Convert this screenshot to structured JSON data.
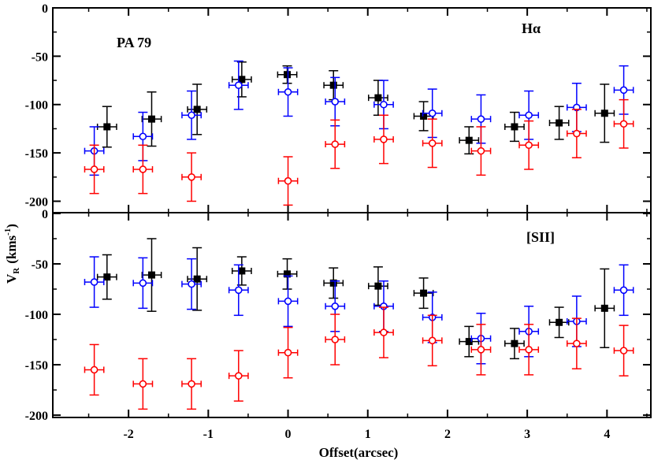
{
  "chart_data": {
    "type": "scatter",
    "title": "",
    "xlabel": "Offset(arcsec)",
    "ylabel": {
      "main": "V",
      "sub": "R",
      "unit": "(kms",
      "unit_sup": "-1",
      "unit_end": ")"
    },
    "xlim": [
      -2.95,
      4.55
    ],
    "xticks": [
      -2,
      -1,
      0,
      1,
      2,
      3,
      4
    ],
    "grid": false,
    "colors": {
      "black": "#000000",
      "blue": "#0000ff",
      "red": "#ff0000"
    },
    "panels": [
      {
        "name": "halpha",
        "annotations": [
          "PA 79",
          "Hα"
        ],
        "ylim": [
          -210,
          0
        ],
        "yticks": [
          0,
          -50,
          -100,
          -150,
          -200
        ],
        "series": [
          {
            "name": "black",
            "marker": "square-filled",
            "color": "#000000",
            "x": [
              -2.27,
              -1.71,
              -1.14,
              -0.58,
              -0.01,
              0.57,
              1.13,
              1.7,
              2.27,
              2.84,
              3.4,
              3.97
            ],
            "y": [
              -123,
              -115,
              -105,
              -74,
              -69,
              -80,
              -93,
              -112,
              -137,
              -123,
              -119,
              -109
            ],
            "xerr": [
              0.12,
              0.12,
              0.12,
              0.12,
              0.12,
              0.12,
              0.12,
              0.12,
              0.12,
              0.12,
              0.12,
              0.12
            ],
            "yerr": [
              21,
              28,
              26,
              18,
              9,
              15,
              18,
              15,
              14,
              15,
              17,
              30
            ]
          },
          {
            "name": "blue",
            "marker": "circle-open",
            "color": "#0000ff",
            "x": [
              -2.43,
              -1.82,
              -1.21,
              -0.62,
              0.0,
              0.59,
              1.2,
              1.81,
              2.42,
              3.02,
              3.62,
              4.21
            ],
            "y": [
              -148,
              -133,
              -111,
              -80,
              -87,
              -97,
              -100,
              -109,
              -115,
              -111,
              -103,
              -85
            ],
            "xerr": [
              0.12,
              0.12,
              0.12,
              0.12,
              0.12,
              0.12,
              0.12,
              0.12,
              0.12,
              0.12,
              0.12,
              0.12
            ],
            "yerr": [
              25,
              25,
              25,
              25,
              25,
              25,
              25,
              25,
              25,
              25,
              25,
              25
            ]
          },
          {
            "name": "red",
            "marker": "circle-open",
            "color": "#ff0000",
            "x": [
              -2.43,
              -1.82,
              -1.21,
              0.0,
              0.59,
              1.2,
              1.81,
              2.42,
              3.02,
              3.62,
              4.21
            ],
            "y": [
              -167,
              -167,
              -175,
              -179,
              -141,
              -136,
              -140,
              -148,
              -142,
              -130,
              -120
            ],
            "xerr": [
              0.12,
              0.12,
              0.12,
              0.12,
              0.12,
              0.12,
              0.12,
              0.12,
              0.12,
              0.12,
              0.12
            ],
            "yerr": [
              25,
              25,
              25,
              25,
              25,
              25,
              25,
              25,
              25,
              25,
              25
            ]
          }
        ]
      },
      {
        "name": "sii",
        "annotations": [
          "[SII]"
        ],
        "ylim": [
          -205,
          0
        ],
        "yticks": [
          0,
          -50,
          -100,
          -150,
          -200
        ],
        "series": [
          {
            "name": "black",
            "marker": "square-filled",
            "color": "#000000",
            "x": [
              -2.27,
              -1.71,
              -1.14,
              -0.58,
              -0.01,
              0.57,
              1.13,
              1.7,
              2.27,
              2.84,
              3.4,
              3.97
            ],
            "y": [
              -63,
              -61,
              -65,
              -57,
              -60,
              -69,
              -72,
              -79,
              -127,
              -129,
              -108,
              -94
            ],
            "xerr": [
              0.12,
              0.12,
              0.12,
              0.12,
              0.12,
              0.12,
              0.12,
              0.12,
              0.12,
              0.12,
              0.12,
              0.12
            ],
            "yerr": [
              22,
              36,
              31,
              14,
              15,
              15,
              19,
              15,
              15,
              15,
              15,
              39
            ]
          },
          {
            "name": "blue",
            "marker": "circle-open",
            "color": "#0000ff",
            "x": [
              -2.43,
              -1.82,
              -1.21,
              -0.62,
              0.0,
              0.59,
              1.2,
              1.81,
              2.42,
              3.02,
              3.62,
              4.21
            ],
            "y": [
              -68,
              -69,
              -70,
              -76,
              -87,
              -92,
              -92,
              -103,
              -124,
              -117,
              -107,
              -76
            ],
            "xerr": [
              0.12,
              0.12,
              0.12,
              0.12,
              0.12,
              0.12,
              0.12,
              0.12,
              0.12,
              0.12,
              0.12,
              0.12
            ],
            "yerr": [
              25,
              25,
              25,
              25,
              25,
              25,
              25,
              25,
              25,
              25,
              25,
              25
            ]
          },
          {
            "name": "red",
            "marker": "circle-open",
            "color": "#ff0000",
            "x": [
              -2.43,
              -1.82,
              -1.21,
              -0.62,
              0.0,
              0.59,
              1.2,
              1.81,
              2.42,
              3.02,
              3.62,
              4.21
            ],
            "y": [
              -155,
              -169,
              -169,
              -161,
              -138,
              -125,
              -118,
              -126,
              -135,
              -135,
              -129,
              -136
            ],
            "xerr": [
              0.12,
              0.12,
              0.12,
              0.12,
              0.12,
              0.12,
              0.12,
              0.12,
              0.12,
              0.12,
              0.12,
              0.12
            ],
            "yerr": [
              25,
              25,
              25,
              25,
              25,
              25,
              25,
              25,
              25,
              25,
              25,
              25
            ]
          }
        ]
      }
    ]
  }
}
